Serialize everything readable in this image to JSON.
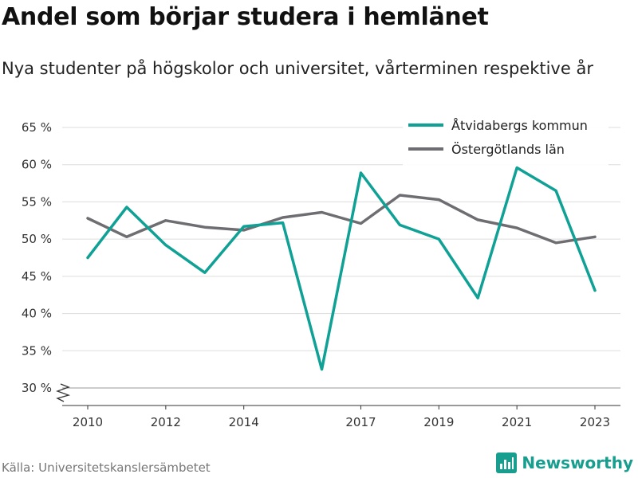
{
  "title": "Andel som börjar studera i hemlänet",
  "subtitle": "Nya studenter på högskolor och universitet, vårterminen respektive år",
  "source": "Källa: Universitetskanslersämbetet",
  "brand": "Newsworthy",
  "brand_icon": "newsworthy-logo-icon",
  "colors": {
    "series1": "#0fa195",
    "series2": "#6e6e72",
    "grid": "#dddddd",
    "brand": "#179e8e"
  },
  "chart_data": {
    "type": "line",
    "x": [
      2010,
      2011,
      2012,
      2013,
      2014,
      2015,
      2016,
      2017,
      2018,
      2019,
      2020,
      2021,
      2022,
      2023
    ],
    "x_tick_labels": [
      "2010",
      "2012",
      "2014",
      "2017",
      "2019",
      "2021",
      "2023"
    ],
    "y_tick_labels": [
      "30 %",
      "35 %",
      "40 %",
      "45 %",
      "50 %",
      "55 %",
      "60 %",
      "65 %"
    ],
    "ylim": [
      30,
      65
    ],
    "xlim": [
      2010,
      2023
    ],
    "y_axis_break": true,
    "grid": true,
    "legend_position": "top-right",
    "series": [
      {
        "name": "Åtvidabergs kommun",
        "color": "#0fa195",
        "values": [
          47.5,
          54.3,
          49.2,
          45.5,
          51.7,
          52.2,
          32.5,
          58.9,
          51.9,
          50.0,
          42.1,
          59.6,
          56.5,
          43.1
        ]
      },
      {
        "name": "Östergötlands län",
        "color": "#6e6e72",
        "values": [
          52.8,
          50.3,
          52.5,
          51.6,
          51.2,
          52.9,
          53.6,
          52.1,
          55.9,
          55.3,
          52.6,
          51.5,
          49.5,
          50.3
        ]
      }
    ]
  }
}
